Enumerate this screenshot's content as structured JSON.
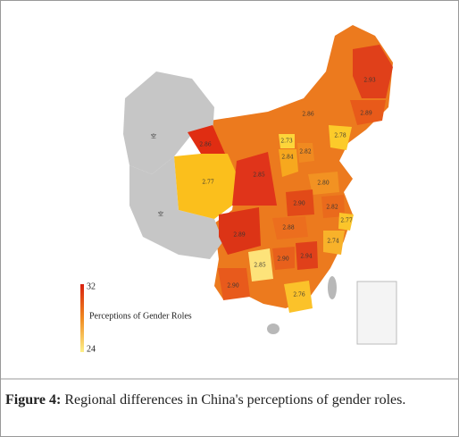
{
  "figure": {
    "regions": [
      {
        "label": "空",
        "color": "#c6c6c6"
      },
      {
        "label": "空",
        "color": "#c6c6c6"
      },
      {
        "label": "2.77",
        "color": "#fbbf1c"
      },
      {
        "label": "2.86",
        "color": "#e02d12"
      },
      {
        "label": "2.86",
        "color": "#ec7a1e"
      },
      {
        "label": "2.93",
        "color": "#e0401a"
      },
      {
        "label": "2.89",
        "color": "#e85a1a"
      },
      {
        "label": "2.78",
        "color": "#fccb2a"
      },
      {
        "label": "2.73",
        "color": "#fdd53a"
      },
      {
        "label": "2.84",
        "color": "#f7a81e"
      },
      {
        "label": "2.82",
        "color": "#f08a20"
      },
      {
        "label": "2.85",
        "color": "#e0341a"
      },
      {
        "label": "2.80",
        "color": "#f29222"
      },
      {
        "label": "2.90",
        "color": "#e24a18"
      },
      {
        "label": "2.82",
        "color": "#ea6a1c"
      },
      {
        "label": "2.77",
        "color": "#fbc52a"
      },
      {
        "label": "2.89",
        "color": "#dc3416"
      },
      {
        "label": "2.88",
        "color": "#ec6e1e"
      },
      {
        "label": "2.85",
        "color": "#fde37a"
      },
      {
        "label": "2.90",
        "color": "#e8601c"
      },
      {
        "label": "2.94",
        "color": "#e0401a"
      },
      {
        "label": "2.74",
        "color": "#f8b22a"
      },
      {
        "label": "2.76",
        "color": "#fbc22a"
      },
      {
        "label": "2.90",
        "color": "#e85a1c"
      }
    ],
    "legend": {
      "max": 32,
      "title": "Perceptions of Gender Roles",
      "min": 24
    }
  },
  "caption": {
    "label": "Figure 4:",
    "text": "Regional differences in China's perceptions of gender roles."
  }
}
